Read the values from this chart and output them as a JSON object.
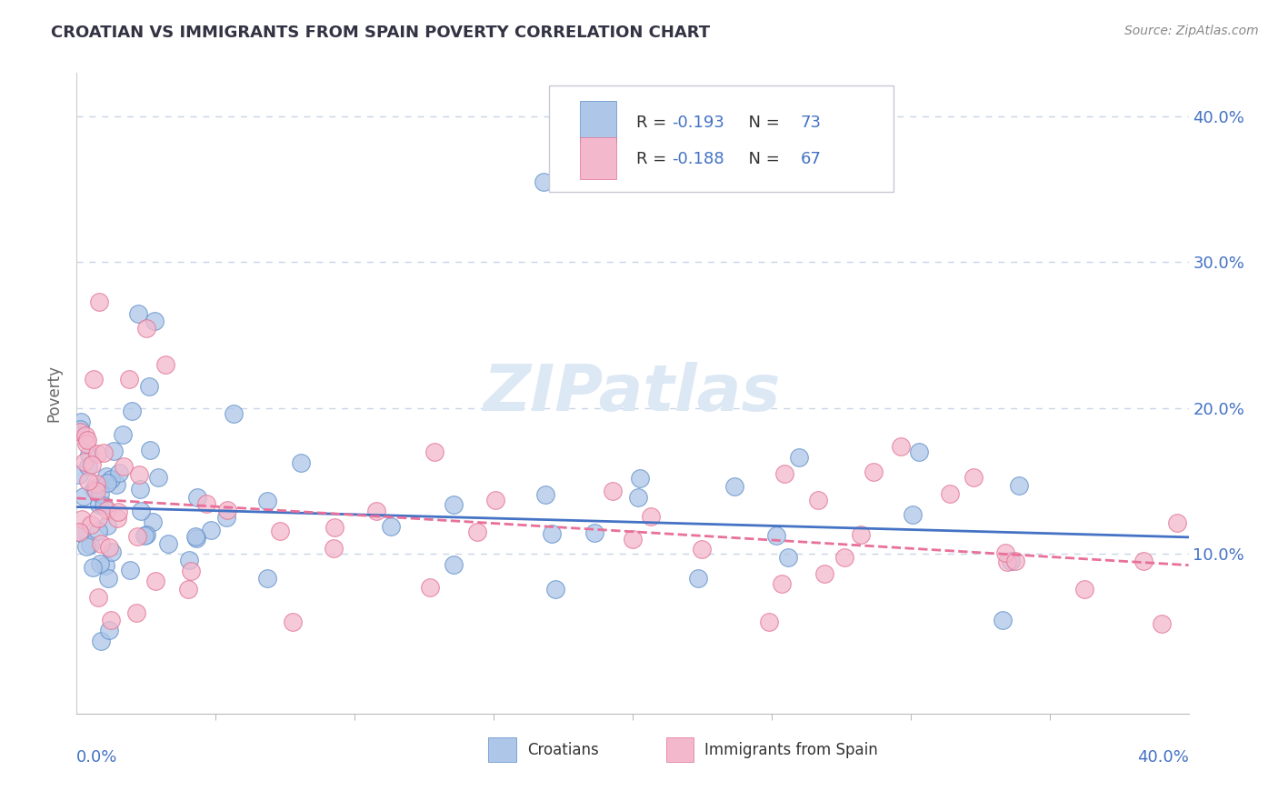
{
  "title": "CROATIAN VS IMMIGRANTS FROM SPAIN POVERTY CORRELATION CHART",
  "source": "Source: ZipAtlas.com",
  "ylabel": "Poverty",
  "xlim": [
    0.0,
    0.4
  ],
  "ylim": [
    -0.01,
    0.43
  ],
  "croatian_R": -0.193,
  "croatian_N": 73,
  "spain_R": -0.188,
  "spain_N": 67,
  "croatian_color": "#aec6e8",
  "spain_color": "#f4b8cc",
  "croatian_edge": "#5b8cc8",
  "spain_edge": "#e07090",
  "trendline_croatian_color": "#4472c4",
  "trendline_spain_color": "#e8709a",
  "grid_color": "#c8d4e8",
  "background_color": "#ffffff",
  "title_color": "#333344",
  "axis_label_color": "#4472c4",
  "legend_number_color": "#4472c4",
  "watermark_color": "#dde8f5",
  "ytick_values": [
    0.1,
    0.2,
    0.3,
    0.4
  ],
  "trendline_cr_intercept": 0.132,
  "trendline_cr_slope": -0.052,
  "trendline_sp_intercept": 0.138,
  "trendline_sp_slope": -0.115
}
